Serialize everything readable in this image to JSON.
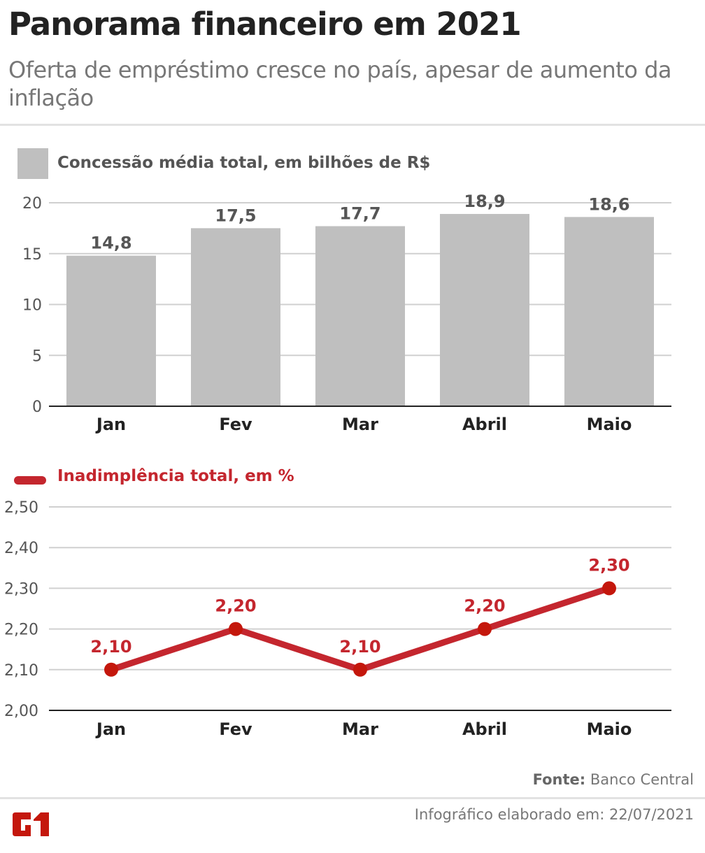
{
  "header": {
    "title": "Panorama financeiro em 2021",
    "subtitle": "Oferta de empréstimo cresce no país, apesar de aumento da inflação"
  },
  "chart_data": [
    {
      "type": "bar",
      "legend": "Concessão média total, em bilhões de R$",
      "categories": [
        "Jan",
        "Fev",
        "Mar",
        "Abril",
        "Maio"
      ],
      "values": [
        14.8,
        17.5,
        17.7,
        18.9,
        18.6
      ],
      "value_labels": [
        "14,8",
        "17,5",
        "17,7",
        "18,9",
        "18,6"
      ],
      "yticks": [
        "0",
        "5",
        "10",
        "15",
        "20"
      ],
      "ylim": [
        0,
        20
      ],
      "grid": true,
      "color": "#bfbfbf"
    },
    {
      "type": "line",
      "legend": "Inadimplência total, em %",
      "categories": [
        "Jan",
        "Fev",
        "Mar",
        "Abril",
        "Maio"
      ],
      "values": [
        2.1,
        2.2,
        2.1,
        2.2,
        2.3
      ],
      "value_labels": [
        "2,10",
        "2,20",
        "2,10",
        "2,20",
        "2,30"
      ],
      "yticks": [
        "2,00",
        "2,10",
        "2,20",
        "2,30",
        "2,40",
        "2,50"
      ],
      "ylim": [
        2.0,
        2.5
      ],
      "grid": true,
      "color": "#c4262e"
    }
  ],
  "footer": {
    "source_label": "Fonte:",
    "source": "Banco Central",
    "credit": "Infográfico elaborado em: 22/07/2021",
    "logo_text": "G1",
    "logo_color": "#c4170c"
  }
}
